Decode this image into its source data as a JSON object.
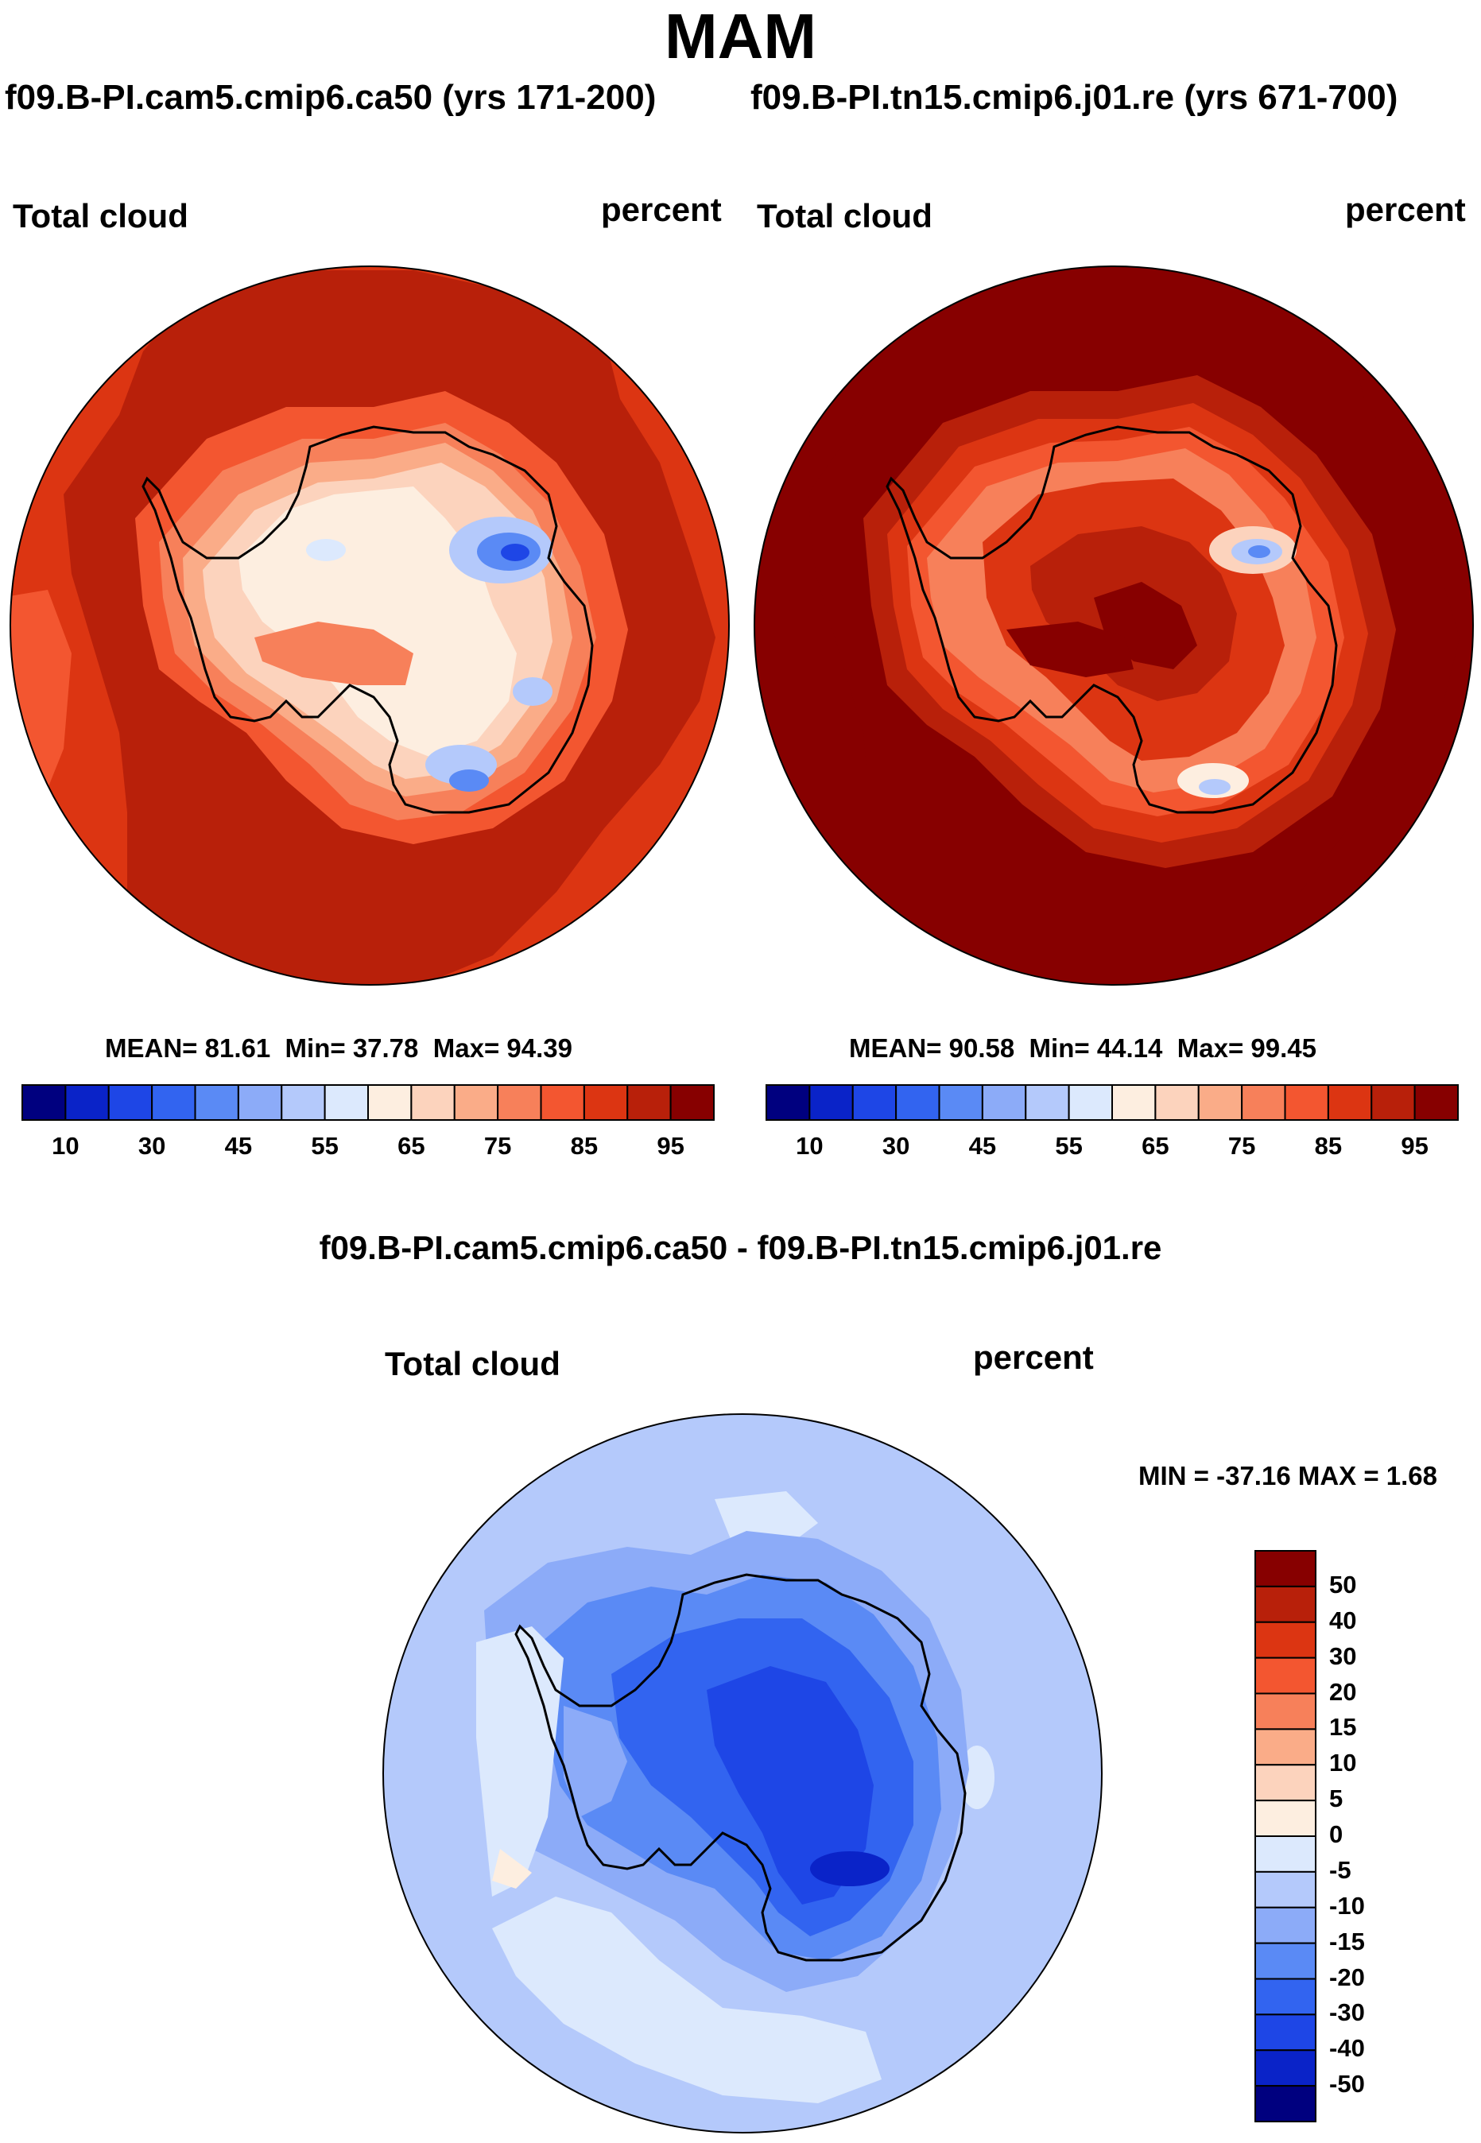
{
  "header": {
    "title": "MAM",
    "left_case": "f09.B-PI.cam5.cmip6.ca50 (yrs 171-200)",
    "right_case": "f09.B-PI.tn15.cmip6.j01.re (yrs 671-700)"
  },
  "panels": {
    "left": {
      "variable": "Total cloud",
      "units": "percent",
      "mean_label": "MEAN=",
      "mean": "81.61",
      "min_label": "Min=",
      "min": "37.78",
      "max_label": "Max=",
      "max": "94.39"
    },
    "right": {
      "variable": "Total cloud",
      "units": "percent",
      "mean_label": "MEAN=",
      "mean": "90.58",
      "min_label": "Min=",
      "min": "44.14",
      "max_label": "Max=",
      "max": "99.45"
    },
    "diff": {
      "title": "f09.B-PI.cam5.cmip6.ca50 - f09.B-PI.tn15.cmip6.j01.re",
      "variable": "Total cloud",
      "units": "percent",
      "minmax": "MIN = -37.16 MAX =   1.68"
    }
  },
  "colorbars": {
    "abs_colors": [
      "#00007f",
      "#0a23c8",
      "#1e46e6",
      "#3264f0",
      "#5a8af5",
      "#8cabf8",
      "#b4c9fb",
      "#dce9fd",
      "#fdeee0",
      "#fcd3bd",
      "#faac88",
      "#f7805a",
      "#f35630",
      "#dc3512",
      "#b8200a",
      "#870000"
    ],
    "abs_ticks": [
      "10",
      "30",
      "45",
      "55",
      "65",
      "75",
      "85",
      "95"
    ],
    "diff_colors": [
      "#870000",
      "#b8200a",
      "#dc3512",
      "#f35630",
      "#f7805a",
      "#faac88",
      "#fcd3bd",
      "#fdeee0",
      "#dce9fd",
      "#b4c9fb",
      "#8cabf8",
      "#5a8af5",
      "#3264f0",
      "#1e46e6",
      "#0a23c8",
      "#00007f"
    ],
    "diff_ticks": [
      "50",
      "40",
      "30",
      "20",
      "15",
      "10",
      "5",
      "0",
      "-5",
      "-10",
      "-15",
      "-20",
      "-30",
      "-40",
      "-50"
    ]
  }
}
